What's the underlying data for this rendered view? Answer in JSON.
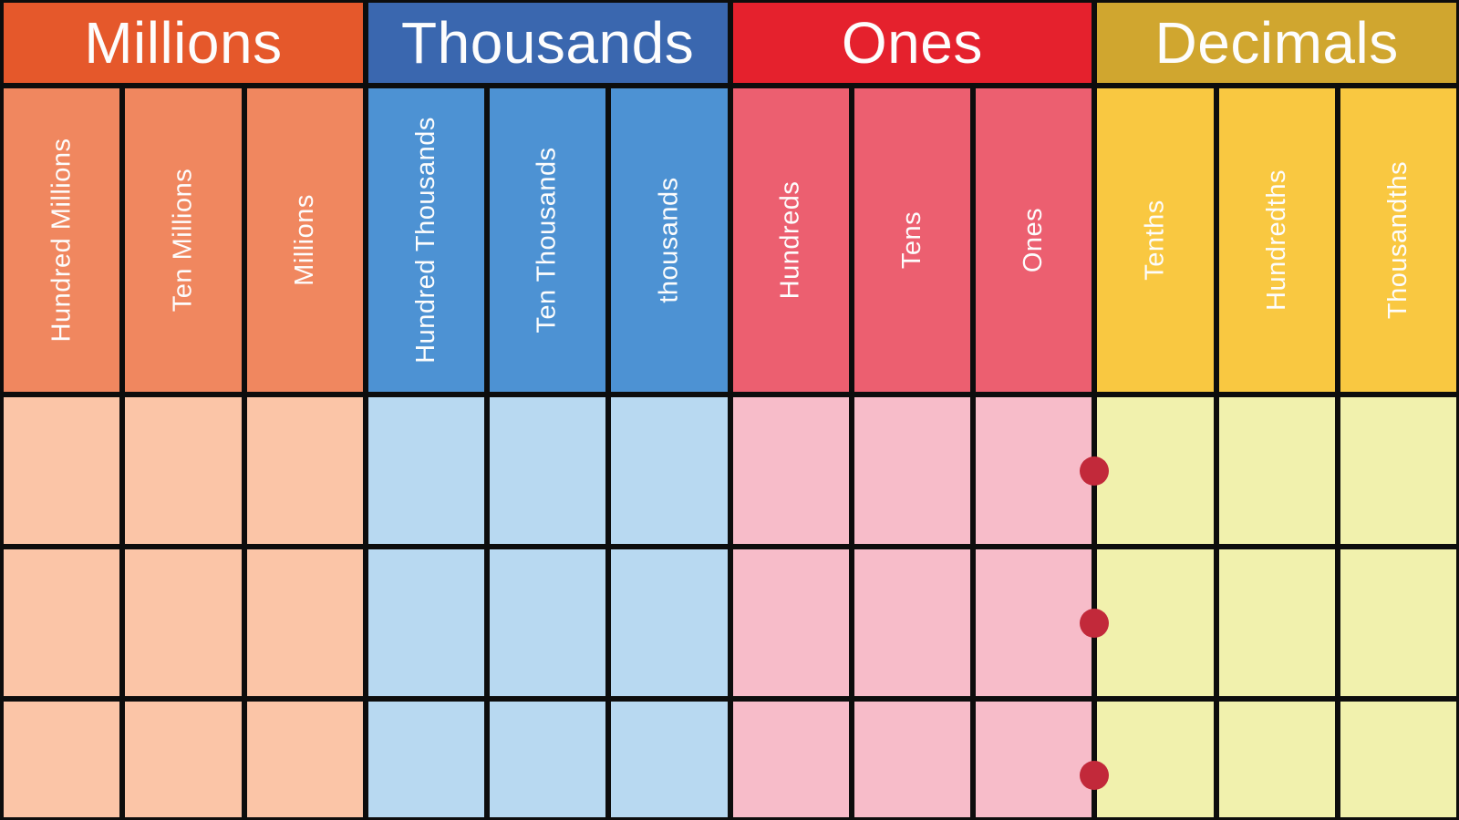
{
  "page": {
    "background": "#0d0d0d",
    "text_color": "#fdfdfd"
  },
  "table": {
    "groups": [
      {
        "label": "Millions",
        "columns": [
          "Hundred Millions",
          "Ten Millions",
          "Millions"
        ],
        "colors": {
          "header": "#e5582b",
          "subheader": "#f0875f",
          "body": "#fbc5a7"
        }
      },
      {
        "label": "Thousands",
        "columns": [
          "Hundred Thousands",
          "Ten Thousands",
          "thousands"
        ],
        "colors": {
          "header": "#3a67af",
          "subheader": "#4d92d3",
          "body": "#b8d9f1"
        }
      },
      {
        "label": "Ones",
        "columns": [
          "Hundreds",
          "Tens",
          "Ones"
        ],
        "colors": {
          "header": "#e5212d",
          "subheader": "#ec5f70",
          "body": "#f7bcc9"
        }
      },
      {
        "label": "Decimals",
        "columns": [
          "Tenths",
          "Hundredths",
          "Thousandths"
        ],
        "colors": {
          "header": "#d0a62f",
          "subheader": "#f9c841",
          "body": "#f1f1ad"
        }
      }
    ],
    "body_rows": 3,
    "decimal_point": {
      "between": "Ones and Tenths",
      "color": "#c2293a"
    }
  }
}
